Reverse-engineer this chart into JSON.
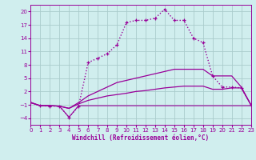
{
  "xlabel": "Windchill (Refroidissement éolien,°C)",
  "background_color": "#d0eeee",
  "grid_color": "#aacccc",
  "line_color": "#990099",
  "x_ticks": [
    0,
    1,
    2,
    3,
    4,
    5,
    6,
    7,
    8,
    9,
    10,
    11,
    12,
    13,
    14,
    15,
    16,
    17,
    18,
    19,
    20,
    21,
    22,
    23
  ],
  "y_ticks": [
    -4,
    -1,
    2,
    5,
    8,
    11,
    14,
    17,
    20
  ],
  "xlim": [
    0,
    23
  ],
  "ylim": [
    -5.5,
    21.5
  ],
  "line1_y": [
    -0.5,
    -1.2,
    -1.2,
    -1.3,
    -3.8,
    -1.2,
    -1.2,
    -1.2,
    -1.2,
    -1.2,
    -1.2,
    -1.2,
    -1.2,
    -1.2,
    -1.2,
    -1.2,
    -1.2,
    -1.2,
    -1.2,
    -1.2,
    -1.2,
    -1.2,
    -1.2,
    -1.2
  ],
  "line2_y": [
    -0.5,
    -1.2,
    -1.2,
    -1.3,
    -1.8,
    -0.8,
    0.0,
    0.5,
    1.0,
    1.3,
    1.6,
    2.0,
    2.2,
    2.5,
    2.8,
    3.0,
    3.2,
    3.2,
    3.2,
    2.5,
    2.5,
    2.8,
    2.8,
    -1.0
  ],
  "line3_y": [
    -0.5,
    -1.2,
    -1.2,
    -1.3,
    -1.8,
    -0.5,
    1.0,
    2.0,
    3.0,
    4.0,
    4.5,
    5.0,
    5.5,
    6.0,
    6.5,
    7.0,
    7.0,
    7.0,
    7.0,
    5.5,
    5.5,
    5.5,
    3.0,
    -1.0
  ],
  "line4_y": [
    -0.5,
    -1.2,
    -1.3,
    -1.3,
    -3.8,
    -1.3,
    8.5,
    9.5,
    10.5,
    12.5,
    17.5,
    18.0,
    18.0,
    18.5,
    20.5,
    18.0,
    18.0,
    14.0,
    13.0,
    5.5,
    3.0,
    3.0,
    2.8,
    -1.0
  ]
}
